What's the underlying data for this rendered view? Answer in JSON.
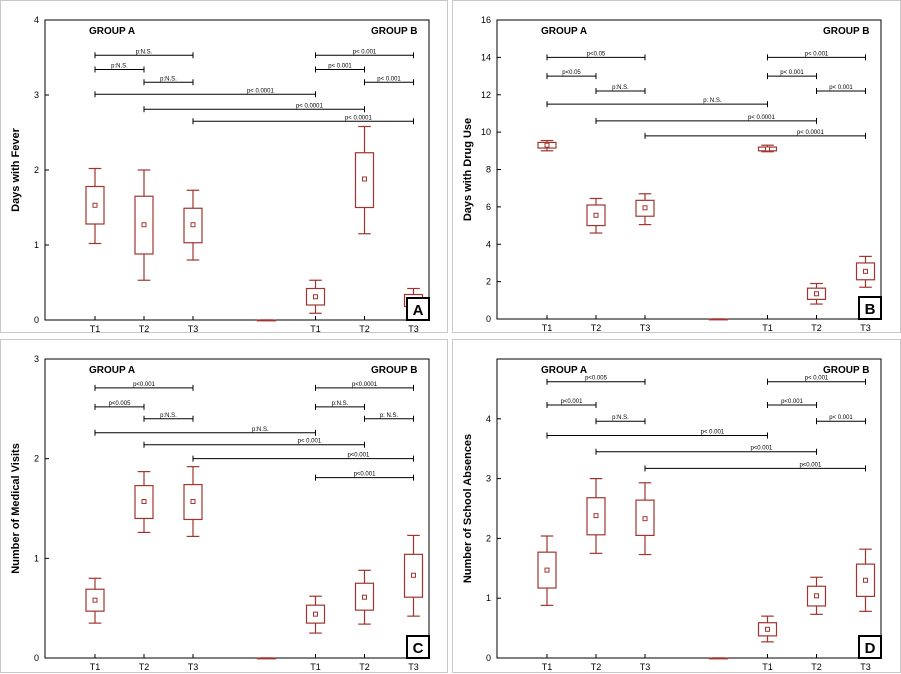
{
  "chart_data": [
    {
      "type": "box",
      "panel_letter": "A",
      "ylabel": "Days with Fever",
      "ylim": [
        0,
        4
      ],
      "yticks": [
        "0",
        "1",
        "2",
        "3",
        "4"
      ],
      "categories": [
        "T1",
        "T2",
        "T3",
        "T1",
        "T2",
        "T3"
      ],
      "groups": [
        "GROUP A",
        "GROUP B"
      ],
      "boxes": [
        {
          "cat": 0,
          "mean": 1.53,
          "q1": 1.28,
          "q3": 1.78,
          "min": 1.02,
          "max": 2.02
        },
        {
          "cat": 1,
          "mean": 1.27,
          "q1": 0.88,
          "q3": 1.65,
          "min": 0.53,
          "max": 2.0
        },
        {
          "cat": 2,
          "mean": 1.27,
          "q1": 1.03,
          "q3": 1.49,
          "min": 0.8,
          "max": 1.73
        },
        {
          "cat": 3.5,
          "mean": 0.0,
          "q1": 0.0,
          "q3": 0.0,
          "min": 0.0,
          "max": 0.0
        },
        {
          "cat": 4.5,
          "mean": 0.31,
          "q1": 0.2,
          "q3": 0.42,
          "min": 0.09,
          "max": 0.53
        },
        {
          "cat": 5.5,
          "mean": 1.88,
          "q1": 1.5,
          "q3": 2.23,
          "min": 1.15,
          "max": 2.58
        },
        {
          "cat": 6.5,
          "mean": 0.26,
          "q1": 0.18,
          "q3": 0.34,
          "min": 0.1,
          "max": 0.42
        }
      ],
      "comparisons": [
        {
          "from": 0,
          "to": 2,
          "y": 3.53,
          "label": "p:N.S."
        },
        {
          "from": 0,
          "to": 1,
          "y": 3.34,
          "label": "p:N.S."
        },
        {
          "from": 1,
          "to": 2,
          "y": 3.17,
          "label": "p:N.S."
        },
        {
          "from": 0,
          "to": 4.5,
          "y": 3.01,
          "label": "p< 0.0001"
        },
        {
          "from": 1,
          "to": 5.5,
          "y": 2.81,
          "label": "p< 0.0001"
        },
        {
          "from": 2,
          "to": 6.5,
          "y": 2.65,
          "label": "p< 0.0001"
        },
        {
          "from": 4.5,
          "to": 6.5,
          "y": 3.53,
          "label": "p< 0.001"
        },
        {
          "from": 4.5,
          "to": 5.5,
          "y": 3.34,
          "label": "p< 0.001"
        },
        {
          "from": 5.5,
          "to": 6.5,
          "y": 3.17,
          "label": "p< 0.001"
        }
      ]
    },
    {
      "type": "box",
      "panel_letter": "B",
      "ylabel": "Days with Drug Use",
      "ylim": [
        0,
        16
      ],
      "yticks": [
        "0",
        "2",
        "4",
        "6",
        "8",
        "10",
        "12",
        "14",
        "16"
      ],
      "categories": [
        "T1",
        "T2",
        "T3",
        "T1",
        "T2",
        "T3"
      ],
      "groups": [
        "GROUP A",
        "GROUP B"
      ],
      "boxes": [
        {
          "cat": 0,
          "mean": 9.3,
          "q1": 9.15,
          "q3": 9.45,
          "min": 9.0,
          "max": 9.55
        },
        {
          "cat": 1,
          "mean": 5.55,
          "q1": 5.0,
          "q3": 6.1,
          "min": 4.6,
          "max": 6.45
        },
        {
          "cat": 2,
          "mean": 5.95,
          "q1": 5.5,
          "q3": 6.35,
          "min": 5.05,
          "max": 6.7
        },
        {
          "cat": 3.5,
          "mean": 0.0,
          "q1": 0.0,
          "q3": 0.0,
          "min": 0.0,
          "max": 0.0
        },
        {
          "cat": 4.5,
          "mean": 9.1,
          "q1": 9.0,
          "q3": 9.2,
          "min": 8.95,
          "max": 9.3
        },
        {
          "cat": 5.5,
          "mean": 1.35,
          "q1": 1.05,
          "q3": 1.65,
          "min": 0.8,
          "max": 1.9
        },
        {
          "cat": 6.5,
          "mean": 2.55,
          "q1": 2.1,
          "q3": 3.0,
          "min": 1.7,
          "max": 3.35
        }
      ],
      "comparisons": [
        {
          "from": 0,
          "to": 2,
          "y": 14.0,
          "label": "p<0.05"
        },
        {
          "from": 0,
          "to": 1,
          "y": 13.0,
          "label": "p<0.05"
        },
        {
          "from": 1,
          "to": 2,
          "y": 12.2,
          "label": "p:N.S."
        },
        {
          "from": 0,
          "to": 4.5,
          "y": 11.5,
          "label": "p: N.S."
        },
        {
          "from": 1,
          "to": 5.5,
          "y": 10.6,
          "label": "p< 0.0001"
        },
        {
          "from": 2,
          "to": 6.5,
          "y": 9.8,
          "label": "p< 0.0001"
        },
        {
          "from": 4.5,
          "to": 6.5,
          "y": 14.0,
          "label": "p< 0.001"
        },
        {
          "from": 4.5,
          "to": 5.5,
          "y": 13.0,
          "label": "p< 0.001"
        },
        {
          "from": 5.5,
          "to": 6.5,
          "y": 12.2,
          "label": "p< 0.001"
        }
      ]
    },
    {
      "type": "box",
      "panel_letter": "C",
      "ylabel": "Number of Medical Visits",
      "ylim": [
        0,
        3
      ],
      "yticks": [
        "0",
        "1",
        "2",
        "3"
      ],
      "categories": [
        "T1",
        "T2",
        "T3",
        "T1",
        "T2",
        "T3"
      ],
      "groups": [
        "GROUP A",
        "GROUP B"
      ],
      "boxes": [
        {
          "cat": 0,
          "mean": 0.58,
          "q1": 0.47,
          "q3": 0.69,
          "min": 0.35,
          "max": 0.8
        },
        {
          "cat": 1,
          "mean": 1.57,
          "q1": 1.4,
          "q3": 1.73,
          "min": 1.26,
          "max": 1.87
        },
        {
          "cat": 2,
          "mean": 1.57,
          "q1": 1.39,
          "q3": 1.74,
          "min": 1.22,
          "max": 1.92
        },
        {
          "cat": 3.5,
          "mean": 0.0,
          "q1": 0.0,
          "q3": 0.0,
          "min": 0.0,
          "max": 0.0
        },
        {
          "cat": 4.5,
          "mean": 0.44,
          "q1": 0.35,
          "q3": 0.53,
          "min": 0.25,
          "max": 0.62
        },
        {
          "cat": 5.5,
          "mean": 0.61,
          "q1": 0.48,
          "q3": 0.75,
          "min": 0.34,
          "max": 0.88
        },
        {
          "cat": 6.5,
          "mean": 0.83,
          "q1": 0.61,
          "q3": 1.04,
          "min": 0.42,
          "max": 1.23
        }
      ],
      "comparisons": [
        {
          "from": 0,
          "to": 2,
          "y": 2.71,
          "label": "p<0.001"
        },
        {
          "from": 0,
          "to": 1,
          "y": 2.52,
          "label": "p<0.005"
        },
        {
          "from": 1,
          "to": 2,
          "y": 2.4,
          "label": "p:N.S."
        },
        {
          "from": 0,
          "to": 4.5,
          "y": 2.26,
          "label": "p:N.S."
        },
        {
          "from": 1,
          "to": 5.5,
          "y": 2.14,
          "label": "p< 0.001"
        },
        {
          "from": 2,
          "to": 6.5,
          "y": 2.0,
          "label": "p<0.001"
        },
        {
          "from": 4.5,
          "to": 6.5,
          "y": 1.81,
          "label": "p<0.001"
        },
        {
          "from": 4.5,
          "to": 6.5,
          "y": 2.71,
          "label": "p<0.0001"
        },
        {
          "from": 4.5,
          "to": 5.5,
          "y": 2.52,
          "label": "p:N.S."
        },
        {
          "from": 5.5,
          "to": 6.5,
          "y": 2.4,
          "label": "p: N.S."
        }
      ]
    },
    {
      "type": "box",
      "panel_letter": "D",
      "ylabel": "Number of School Absences",
      "ylim": [
        0,
        5
      ],
      "yticks": [
        "0",
        "1",
        "2",
        "3",
        "4"
      ],
      "categories": [
        "T1",
        "T2",
        "T3",
        "T1",
        "T2",
        "T3"
      ],
      "groups": [
        "GROUP A",
        "GROUP B"
      ],
      "boxes": [
        {
          "cat": 0,
          "mean": 1.47,
          "q1": 1.17,
          "q3": 1.77,
          "min": 0.88,
          "max": 2.04
        },
        {
          "cat": 1,
          "mean": 2.38,
          "q1": 2.06,
          "q3": 2.68,
          "min": 1.75,
          "max": 3.0
        },
        {
          "cat": 2,
          "mean": 2.33,
          "q1": 2.05,
          "q3": 2.64,
          "min": 1.73,
          "max": 2.93
        },
        {
          "cat": 3.5,
          "mean": 0.0,
          "q1": 0.0,
          "q3": 0.0,
          "min": 0.0,
          "max": 0.0
        },
        {
          "cat": 4.5,
          "mean": 0.48,
          "q1": 0.37,
          "q3": 0.59,
          "min": 0.27,
          "max": 0.7
        },
        {
          "cat": 5.5,
          "mean": 1.04,
          "q1": 0.87,
          "q3": 1.2,
          "min": 0.73,
          "max": 1.35
        },
        {
          "cat": 6.5,
          "mean": 1.3,
          "q1": 1.03,
          "q3": 1.57,
          "min": 0.78,
          "max": 1.82
        }
      ],
      "comparisons": [
        {
          "from": 0,
          "to": 2,
          "y": 4.62,
          "label": "p<0.005"
        },
        {
          "from": 0,
          "to": 1,
          "y": 4.23,
          "label": "p<0.001"
        },
        {
          "from": 1,
          "to": 2,
          "y": 3.96,
          "label": "p:N.S."
        },
        {
          "from": 0,
          "to": 4.5,
          "y": 3.72,
          "label": "p< 0.001"
        },
        {
          "from": 1,
          "to": 5.5,
          "y": 3.45,
          "label": "p<0.001"
        },
        {
          "from": 2,
          "to": 6.5,
          "y": 3.17,
          "label": "p<0.001"
        },
        {
          "from": 4.5,
          "to": 6.5,
          "y": 4.62,
          "label": "p< 0.001"
        },
        {
          "from": 4.5,
          "to": 5.5,
          "y": 4.23,
          "label": "p<0.001"
        },
        {
          "from": 5.5,
          "to": 6.5,
          "y": 3.96,
          "label": "p< 0.001"
        }
      ]
    }
  ],
  "colors": {
    "box_stroke": "#a0352f",
    "axis": "#000000",
    "panel_border": "#c8c8c8"
  }
}
